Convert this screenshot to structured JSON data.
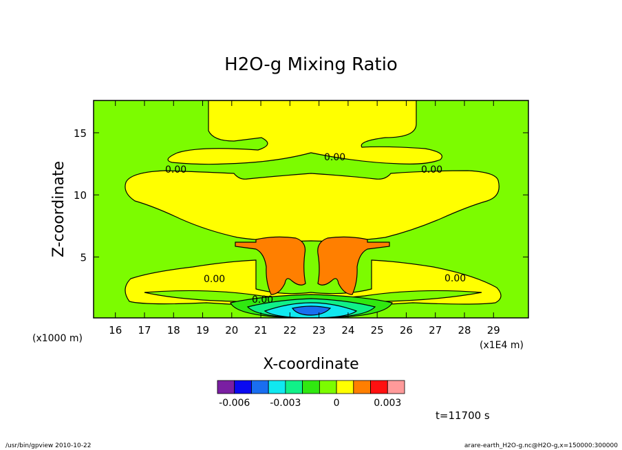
{
  "chart_data": {
    "type": "heatmap",
    "title": "H2O-g Mixing Ratio",
    "xlabel": "X-coordinate",
    "ylabel": "Z-coordinate",
    "x_scale_note": "(x1E4 m)",
    "y_scale_note": "(x1000 m)",
    "xlim": [
      15.25,
      30.2
    ],
    "ylim": [
      0.1,
      17.6
    ],
    "x_ticks": [
      "16",
      "17",
      "18",
      "19",
      "20",
      "21",
      "22",
      "23",
      "24",
      "25",
      "26",
      "27",
      "28",
      "29"
    ],
    "y_ticks": [
      "5",
      "10",
      "15"
    ],
    "contour_labels": [
      "0.00",
      "0.00",
      "0.00",
      "0.00",
      "0.00",
      "0.00"
    ],
    "colorbar": {
      "colors": [
        "#7a1fa2",
        "#0a0af0",
        "#1a6ef0",
        "#10e8f0",
        "#10f088",
        "#30e810",
        "#7cfc00",
        "#ffff00",
        "#ff7f00",
        "#ff1010",
        "#ff9a9a"
      ],
      "tick_labels": [
        "-0.006",
        "-0.003",
        "0",
        "0.003"
      ]
    },
    "background_color": "#7cfc00",
    "time_label": "t=11700 s"
  },
  "footer": {
    "left": "/usr/bin/gpview   2010-10-22",
    "right": "arare-earth_H2O-g.nc@H2O-g,x=150000:300000"
  }
}
